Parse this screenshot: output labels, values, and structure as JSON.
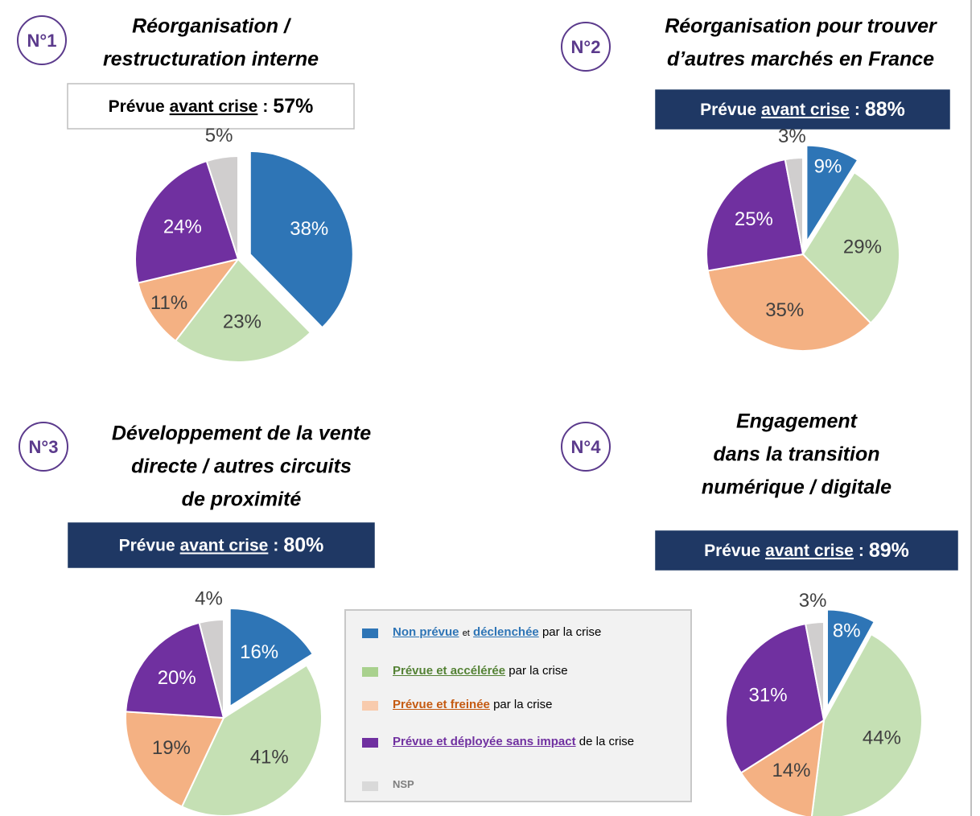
{
  "chart_data": [
    {
      "type": "pie",
      "badge": "N°1",
      "title": [
        "Réorganisation /",
        "restructuration interne"
      ],
      "planned_label": [
        "Prévue",
        "avant crise",
        ":"
      ],
      "planned_value": 57,
      "planned_value_label": "57%",
      "box_style": "light",
      "values": [
        38,
        23,
        11,
        24,
        5
      ],
      "value_labels": [
        "38%",
        "23%",
        "11%",
        "24%",
        "5%"
      ],
      "colors": [
        "#2e75b6",
        "#c5e0b4",
        "#f4b183",
        "#7030a0",
        "#d0cece"
      ]
    },
    {
      "type": "pie",
      "badge": "N°2",
      "title": [
        "Réorganisation pour trouver",
        "d’autres marchés en France"
      ],
      "planned_label": [
        "Prévue",
        "avant crise",
        ":"
      ],
      "planned_value": 88,
      "planned_value_label": "88%",
      "box_style": "dark",
      "values": [
        9,
        29,
        35,
        25,
        3
      ],
      "value_labels": [
        "9%",
        "29%",
        "35%",
        "25%",
        "3%"
      ],
      "colors": [
        "#2e75b6",
        "#c5e0b4",
        "#f4b183",
        "#7030a0",
        "#d0cece"
      ]
    },
    {
      "type": "pie",
      "badge": "N°3",
      "title": [
        "Développement de la vente",
        "directe / autres circuits",
        "de proximité"
      ],
      "planned_label": [
        "Prévue",
        "avant crise",
        ":"
      ],
      "planned_value": 80,
      "planned_value_label": "80%",
      "box_style": "dark",
      "values": [
        16,
        41,
        19,
        20,
        4
      ],
      "value_labels": [
        "16%",
        "41%",
        "19%",
        "20%",
        "4%"
      ],
      "colors": [
        "#2e75b6",
        "#c5e0b4",
        "#f4b183",
        "#7030a0",
        "#d0cece"
      ]
    },
    {
      "type": "pie",
      "badge": "N°4",
      "title": [
        "Engagement",
        "dans la transition",
        "numérique / digitale"
      ],
      "planned_label": [
        "Prévue",
        "avant crise",
        ":"
      ],
      "planned_value": 89,
      "planned_value_label": "89%",
      "box_style": "dark",
      "values": [
        8,
        44,
        14,
        31,
        3
      ],
      "value_labels": [
        "8%",
        "44%",
        "14%",
        "31%",
        "3%"
      ],
      "colors": [
        "#2e75b6",
        "#c5e0b4",
        "#f4b183",
        "#7030a0",
        "#d0cece"
      ]
    }
  ],
  "legend": {
    "items": [
      {
        "color": "#2e75b6",
        "parts": [
          "Non prévue",
          "et",
          "déclenchée",
          "par la crise"
        ]
      },
      {
        "color": "#a9d18e",
        "parts": [
          "Prévue et accélérée",
          "par la crise"
        ]
      },
      {
        "color": "#f8cbad",
        "parts": [
          "Prévue et freinée",
          "par la crise"
        ]
      },
      {
        "color": "#7030a0",
        "parts": [
          "Prévue et déployée sans impact",
          "de la crise"
        ]
      },
      {
        "color": "#d9d9d9",
        "parts": [
          "NSP"
        ]
      }
    ]
  }
}
